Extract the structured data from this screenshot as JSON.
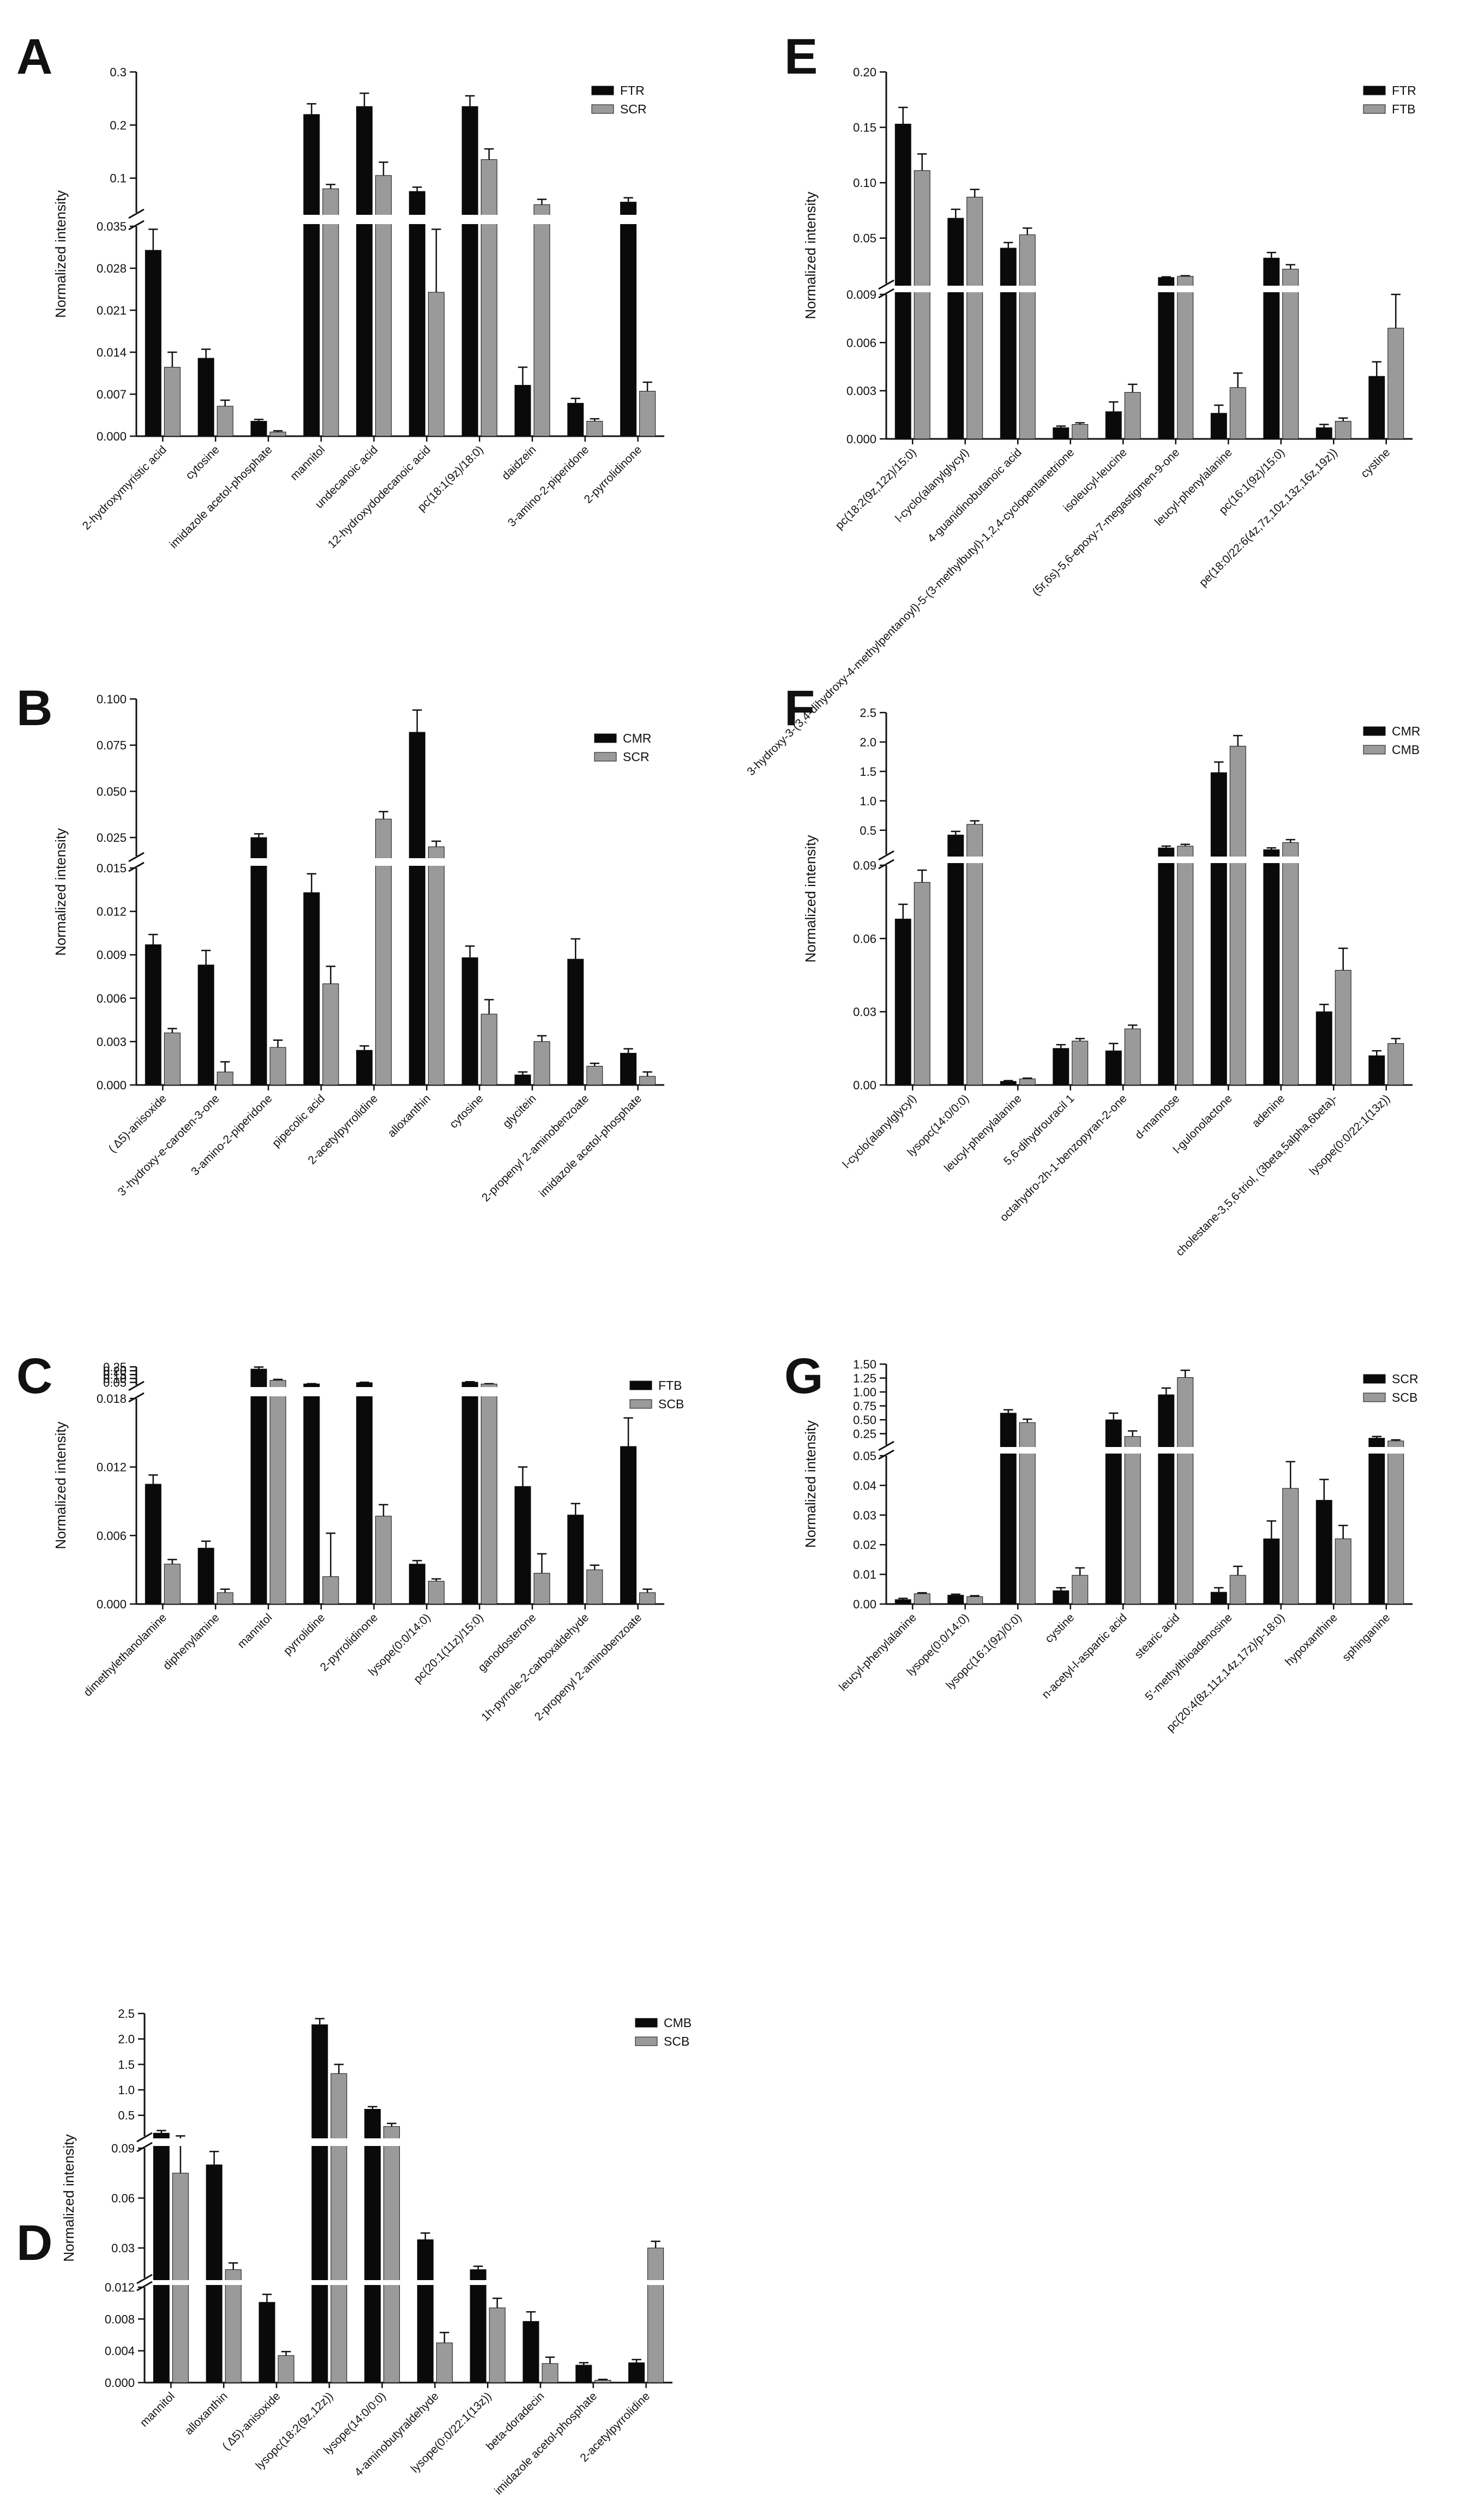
{
  "figure": {
    "type": "multi-panel grouped bar chart"
  },
  "chart_data": [
    {
      "panel": "A",
      "type": "bar",
      "ylabel": "Normalized intensity",
      "legend": [
        "FTR",
        "SCR"
      ],
      "colors": [
        "#0a0a0a",
        "#9a9a9a"
      ],
      "categories": [
        "2-hydroxymyristic acid",
        "cytosine",
        "imidazole acetol-phosphate",
        "mannitol",
        "undecanoic acid",
        "12-hydroxydodecanoic acid",
        "pc(18:1(9z)/18:0)",
        "daidzein",
        "3-amino-2-piperidone",
        "2-pyrrolidinone"
      ],
      "series": [
        {
          "name": "FTR",
          "values": [
            0.031,
            0.013,
            0.0025,
            0.22,
            0.235,
            0.075,
            0.235,
            0.0085,
            0.0055,
            0.055
          ],
          "errors": [
            0.0035,
            0.0015,
            0.0003,
            0.02,
            0.025,
            0.008,
            0.02,
            0.003,
            0.0008,
            0.008
          ]
        },
        {
          "name": "SCR",
          "values": [
            0.0115,
            0.005,
            0.0007,
            0.08,
            0.105,
            0.024,
            0.135,
            0.05,
            0.0025,
            0.0075
          ],
          "errors": [
            0.0025,
            0.001,
            0.0002,
            0.008,
            0.025,
            0.0105,
            0.02,
            0.01,
            0.0004,
            0.0015
          ]
        }
      ],
      "axis": {
        "lower": {
          "range": [
            0,
            0.035
          ],
          "ticks": [
            "0.000",
            "0.007",
            "0.014",
            "0.021",
            "0.028",
            "0.035"
          ]
        },
        "upper": {
          "range": [
            0.035,
            0.3
          ],
          "ticks": [
            "0.1",
            "0.2",
            "0.3"
          ]
        }
      }
    },
    {
      "panel": "B",
      "type": "bar",
      "ylabel": "Normalized intensity",
      "legend": [
        "CMR",
        "SCR"
      ],
      "colors": [
        "#0a0a0a",
        "#9a9a9a"
      ],
      "categories": [
        "( Δ5)-anisoxide",
        "3'-hydroxy-e-caroten-3-one",
        "3-amino-2-piperidone",
        "pipecolic acid",
        "2-acetylpyrrolidine",
        "alloxanthin",
        "cytosine",
        "glycitein",
        "2-propenyl 2-aminobenzoate",
        "imidazole acetol-phosphate"
      ],
      "series": [
        {
          "name": "CMR",
          "values": [
            0.0097,
            0.0083,
            0.025,
            0.0133,
            0.0024,
            0.082,
            0.0088,
            0.0007,
            0.0087,
            0.0022
          ],
          "errors": [
            0.0007,
            0.001,
            0.002,
            0.0013,
            0.0003,
            0.012,
            0.0008,
            0.0002,
            0.0014,
            0.0003
          ]
        },
        {
          "name": "SCR",
          "values": [
            0.0036,
            0.0009,
            0.0026,
            0.007,
            0.035,
            0.02,
            0.0049,
            0.003,
            0.0013,
            0.0006
          ],
          "errors": [
            0.0003,
            0.0007,
            0.0005,
            0.0012,
            0.004,
            0.003,
            0.001,
            0.0004,
            0.0002,
            0.0003
          ]
        }
      ],
      "axis": {
        "lower": {
          "range": [
            0,
            0.015
          ],
          "ticks": [
            "0.000",
            "0.003",
            "0.006",
            "0.009",
            "0.012",
            "0.015"
          ]
        },
        "upper": {
          "range": [
            0.015,
            0.1
          ],
          "ticks": [
            "0.025",
            "0.050",
            "0.075",
            "0.100"
          ]
        }
      }
    },
    {
      "panel": "C",
      "type": "bar",
      "ylabel": "Normalized intensity",
      "legend": [
        "FTB",
        "SCB"
      ],
      "colors": [
        "#0a0a0a",
        "#9a9a9a"
      ],
      "categories": [
        "dimethylethanolamine",
        "diphenylamine",
        "mannitol",
        "pyrrolidine",
        "2-pyrrolidinone",
        "lysope(0:0/14:0)",
        "pc(20:1(11z)/15:0)",
        "ganodosterone",
        "1h-pyrrole-2-carboxaldehyde",
        "2-propenyl 2-aminobenzoate"
      ],
      "series": [
        {
          "name": "FTB",
          "values": [
            0.0105,
            0.0049,
            0.222,
            0.031,
            0.047,
            0.0035,
            0.053,
            0.0103,
            0.0078,
            0.0138
          ],
          "errors": [
            0.0008,
            0.0006,
            0.025,
            0.003,
            0.004,
            0.0003,
            0.005,
            0.0017,
            0.001,
            0.0025
          ]
        },
        {
          "name": "SCB",
          "values": [
            0.0035,
            0.001,
            0.076,
            0.0024,
            0.0077,
            0.002,
            0.029,
            0.0027,
            0.003,
            0.001
          ],
          "errors": [
            0.0004,
            0.0003,
            0.012,
            0.0038,
            0.001,
            0.0002,
            0.004,
            0.0017,
            0.0004,
            0.0003
          ]
        }
      ],
      "axis": {
        "lower": {
          "range": [
            0,
            0.018
          ],
          "ticks": [
            "0.000",
            "0.006",
            "0.012",
            "0.018"
          ]
        },
        "upper": {
          "range": [
            0.018,
            0.25
          ],
          "ticks": [
            "0.05",
            "0.10",
            "0.15",
            "0.20",
            "0.25"
          ]
        }
      }
    },
    {
      "panel": "D",
      "type": "bar",
      "ylabel": "Normalized intensity",
      "legend": [
        "CMB",
        "SCB"
      ],
      "colors": [
        "#0a0a0a",
        "#9a9a9a"
      ],
      "categories": [
        "mannitol",
        "alloxanthin",
        "( Δ5)-anisoxide",
        "lysopc(18:2(9z,12z))",
        "lysope(14:0/0:0)",
        "4-aminobutyraldehyde",
        "lysope(0:0/22:1(13z))",
        "beta-doradecin",
        "imidazole acetol-phosphate",
        "2-acetylpyrrolidine"
      ],
      "series": [
        {
          "name": "CMB",
          "values": [
            0.15,
            0.08,
            0.0101,
            2.28,
            0.62,
            0.035,
            0.017,
            0.0077,
            0.0022,
            0.0025
          ],
          "errors": [
            0.05,
            0.008,
            0.001,
            0.12,
            0.05,
            0.004,
            0.002,
            0.0012,
            0.0003,
            0.0004
          ]
        },
        {
          "name": "SCB",
          "values": [
            0.075,
            0.017,
            0.0034,
            1.32,
            0.28,
            0.005,
            0.0094,
            0.0024,
            0.0003,
            0.03
          ],
          "errors": [
            0.02,
            0.004,
            0.0005,
            0.18,
            0.06,
            0.0013,
            0.0012,
            0.0008,
            0.0001,
            0.004
          ]
        }
      ],
      "axis": {
        "lower": {
          "range": [
            0,
            0.012
          ],
          "ticks": [
            "0.000",
            "0.004",
            "0.008",
            "0.012"
          ]
        },
        "middle": {
          "range": [
            0.012,
            0.09
          ],
          "ticks": [
            "0.03",
            "0.06",
            "0.09"
          ]
        },
        "upper": {
          "range": [
            0.09,
            2.5
          ],
          "ticks": [
            "0.5",
            "1.0",
            "1.5",
            "2.0",
            "2.5"
          ]
        }
      }
    },
    {
      "panel": "E",
      "type": "bar",
      "ylabel": "Normalized intensity",
      "legend": [
        "FTR",
        "FTB"
      ],
      "colors": [
        "#0a0a0a",
        "#9a9a9a"
      ],
      "categories": [
        "pc(18:2(9z,12z)/15:0)",
        "l-cyclo(alanylglycyl)",
        "4-guanidinobutanoic acid",
        "3-hydroxy-3-(3,4-dihydroxy-4-methylpentanoyl)-5-(3-methylbutyl)-1,2,4-cyclopentanetrione",
        "isoleucyl-leucine",
        "(5r,6s)-5,6-epoxy-7-megastigmen-9-one",
        "leucyl-phenylalanine",
        "pc(16:1(9z)/15:0)",
        "pe(18:0/22:6(4z,7z,10z,13z,16z,19z))",
        "cystine"
      ],
      "series": [
        {
          "name": "FTR",
          "values": [
            0.153,
            0.068,
            0.041,
            0.0007,
            0.0017,
            0.0145,
            0.0016,
            0.032,
            0.0007,
            0.0039
          ],
          "errors": [
            0.015,
            0.008,
            0.005,
            0.0001,
            0.0006,
            0.0005,
            0.0005,
            0.005,
            0.0002,
            0.0009
          ]
        },
        {
          "name": "FTB",
          "values": [
            0.111,
            0.087,
            0.053,
            0.0009,
            0.0029,
            0.0155,
            0.0032,
            0.022,
            0.0011,
            0.0069
          ],
          "errors": [
            0.015,
            0.007,
            0.006,
            0.0001,
            0.0005,
            0.0005,
            0.0009,
            0.004,
            0.0002,
            0.0021
          ]
        }
      ],
      "axis": {
        "lower": {
          "range": [
            0,
            0.009
          ],
          "ticks": [
            "0.000",
            "0.003",
            "0.006",
            "0.009"
          ]
        },
        "upper": {
          "range": [
            0.009,
            0.2
          ],
          "ticks": [
            "0.05",
            "0.10",
            "0.15",
            "0.20"
          ]
        }
      }
    },
    {
      "panel": "F",
      "type": "bar",
      "ylabel": "Normalized intensity",
      "legend": [
        "CMR",
        "CMB"
      ],
      "colors": [
        "#0a0a0a",
        "#9a9a9a"
      ],
      "categories": [
        "l-cyclo(alanylglycyl)",
        "lysopc(14:0/0:0)",
        "leucyl-phenylalanine",
        "5,6-dihydrouracil 1",
        "octahydro-2h-1-benzopyran-2-one",
        "d-mannose",
        "l-gulonolactone",
        "adenine",
        "cholestane-3,5,6-triol, (3beta,5alpha,6beta)-",
        "lysope(0:0/22:1(13z))"
      ],
      "series": [
        {
          "name": "CMR",
          "values": [
            0.068,
            0.42,
            0.0015,
            0.015,
            0.014,
            0.2,
            1.48,
            0.17,
            0.03,
            0.012
          ],
          "errors": [
            0.006,
            0.06,
            0.0003,
            0.0015,
            0.003,
            0.03,
            0.18,
            0.03,
            0.003,
            0.002
          ]
        },
        {
          "name": "CMB",
          "values": [
            0.083,
            0.6,
            0.0025,
            0.018,
            0.023,
            0.23,
            1.93,
            0.29,
            0.047,
            0.017
          ],
          "errors": [
            0.005,
            0.06,
            0.0003,
            0.001,
            0.0015,
            0.03,
            0.18,
            0.05,
            0.009,
            0.002
          ]
        }
      ],
      "axis": {
        "lower": {
          "range": [
            0,
            0.09
          ],
          "ticks": [
            "0.00",
            "0.03",
            "0.06",
            "0.09"
          ]
        },
        "upper": {
          "range": [
            0.09,
            2.5
          ],
          "ticks": [
            "0.5",
            "1.0",
            "1.5",
            "2.0",
            "2.5"
          ]
        }
      }
    },
    {
      "panel": "G",
      "type": "bar",
      "ylabel": "Normalized intensity",
      "legend": [
        "SCR",
        "SCB"
      ],
      "colors": [
        "#0a0a0a",
        "#9a9a9a"
      ],
      "categories": [
        "leucyl-phenylalanine",
        "lysope(0:0/14:0)",
        "lysopc(16:1(9z)/0:0)",
        "cystine",
        "n-acetyl-l-aspartic acid",
        "stearic acid",
        "5'-methylthioadenosine",
        "pc(20:4(8z,11z,14z,17z)/p-18:0)",
        "hypoxanthine",
        "sphinganine"
      ],
      "series": [
        {
          "name": "SCR",
          "values": [
            0.0015,
            0.003,
            0.62,
            0.0045,
            0.5,
            0.95,
            0.004,
            0.022,
            0.035,
            0.17
          ],
          "errors": [
            0.0004,
            0.0003,
            0.06,
            0.001,
            0.12,
            0.12,
            0.0015,
            0.006,
            0.007,
            0.03
          ]
        },
        {
          "name": "SCB",
          "values": [
            0.0035,
            0.0025,
            0.45,
            0.0097,
            0.2,
            1.26,
            0.0097,
            0.039,
            0.022,
            0.12
          ],
          "errors": [
            0.0003,
            0.0003,
            0.06,
            0.0025,
            0.1,
            0.13,
            0.003,
            0.009,
            0.0045,
            0.02
          ]
        }
      ],
      "axis": {
        "lower": {
          "range": [
            0,
            0.05
          ],
          "ticks": [
            "0.00",
            "0.01",
            "0.02",
            "0.03",
            "0.04",
            "0.05"
          ]
        },
        "upper": {
          "range": [
            0.05,
            1.5
          ],
          "ticks": [
            "0.25",
            "0.50",
            "0.75",
            "1.00",
            "1.25",
            "1.50"
          ]
        }
      }
    }
  ]
}
